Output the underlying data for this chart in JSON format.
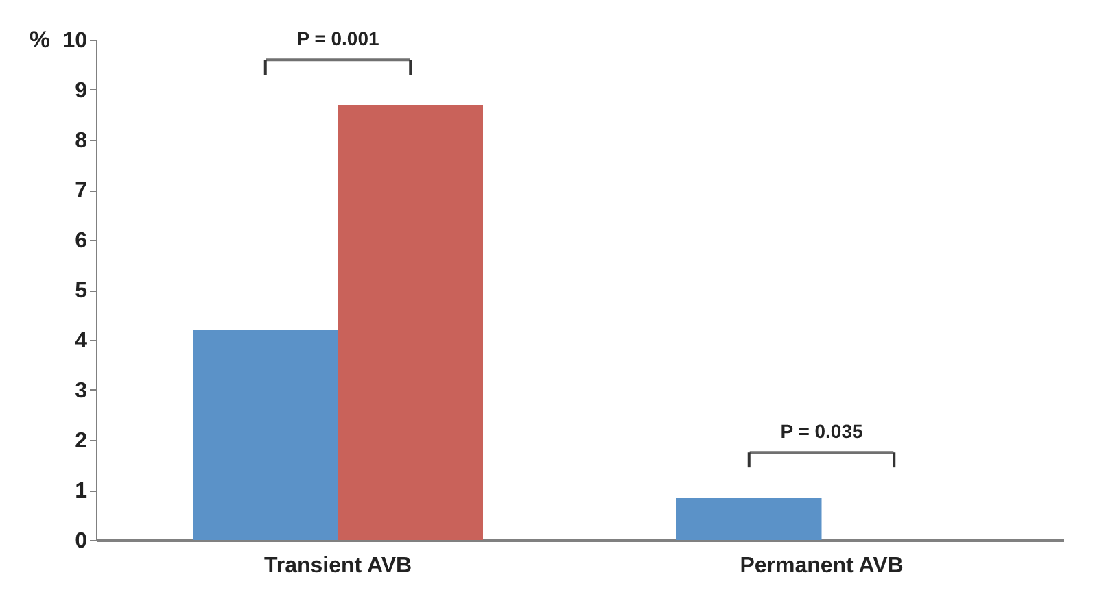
{
  "chart_data": {
    "type": "bar",
    "ylabel": "%",
    "categories": [
      "Transient AVB",
      "Permanent AVB"
    ],
    "series": [
      {
        "color": "#5b92c8",
        "values": [
          4.2,
          0.85
        ]
      },
      {
        "color": "#c9625a",
        "values": [
          8.7,
          0
        ]
      }
    ],
    "ylim": [
      0,
      10
    ],
    "yticks": [
      0,
      1,
      2,
      3,
      4,
      5,
      6,
      7,
      8,
      9,
      10
    ],
    "grid": false,
    "legend": false,
    "annotations": [
      "P = 0.001",
      "P = 0.035"
    ]
  }
}
